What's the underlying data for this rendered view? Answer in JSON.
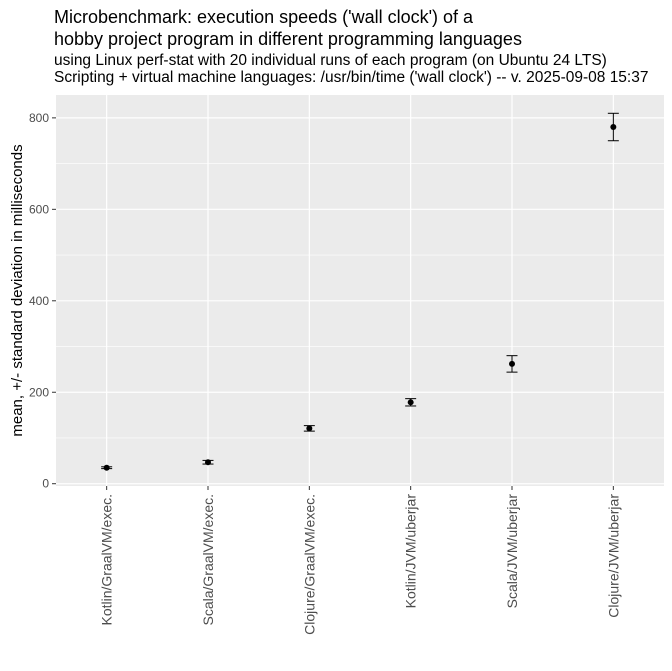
{
  "chart_data": {
    "type": "scatter",
    "title_line1": "Microbenchmark: execution speeds ('wall clock') of a",
    "title_line2": "hobby project program in different programming languages",
    "subtitle_line1": "using Linux perf-stat with 20 individual runs of each program (on Ubuntu 24 LTS)",
    "subtitle_line2": "Scripting + virtual machine languages: /usr/bin/time ('wall clock') -- v. 2025-09-08 15:37",
    "xlabel": "",
    "ylabel": "mean, +/- standard deviation in milliseconds",
    "ylim": [
      -5,
      850
    ],
    "yticks": [
      0,
      200,
      400,
      600,
      800
    ],
    "categories": [
      "Kotlin/GraalVM/exec.",
      "Scala/GraalVM/exec.",
      "Clojure/GraalVM/exec.",
      "Kotlin/JVM/uberjar",
      "Scala/JVM/uberjar",
      "Clojure/JVM/uberjar"
    ],
    "mean": [
      35,
      47,
      121,
      178,
      262,
      780
    ],
    "sd": [
      2,
      4,
      6,
      8,
      18,
      30
    ],
    "grid": true,
    "legend": "none",
    "colors": {
      "panel": "#ebebeb",
      "grid": "#ffffff",
      "point": "#000000"
    }
  }
}
